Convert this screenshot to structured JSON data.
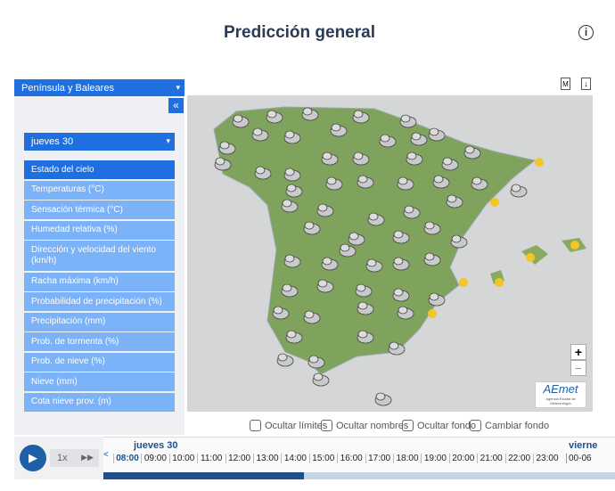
{
  "header": {
    "title": "Predicción general",
    "info": "i"
  },
  "region_select": "Península y Baleares",
  "collapse": "«",
  "day_select": "jueves 30",
  "menu": [
    "Estado del cielo",
    "Temperaturas (°C)",
    "Sensación térmica (°C)",
    "Humedad relativa (%)",
    "Dirección y velocidad del viento (km/h)",
    "Racha máxima (km/h)",
    "Probabilidad de precipitación (%)",
    "Precipitación (mm)",
    "Prob. de tormenta (%)",
    "Prob. de nieve (%)",
    "Nieve (mm)",
    "Cota nieve prov. (m)"
  ],
  "options": [
    "Ocultar límites",
    "Ocultar nombres",
    "Ocultar fondo",
    "Cambiar fondo"
  ],
  "map": {
    "tool": "M",
    "zoom_in": "+",
    "zoom_out": "−",
    "logo": "AEmet",
    "logo_sub": "Agencia Estatal de Meteorología"
  },
  "timeline": {
    "day": "jueves 30",
    "next_day": "vierne",
    "speed": "1x",
    "hours": [
      "08:00",
      "09:00",
      "10:00",
      "11:00",
      "12:00",
      "13:00",
      "14:00",
      "15:00",
      "16:00",
      "17:00",
      "18:00",
      "19:00",
      "20:00",
      "21:00",
      "22:00",
      "23:00"
    ],
    "next_hours": "00-06"
  }
}
